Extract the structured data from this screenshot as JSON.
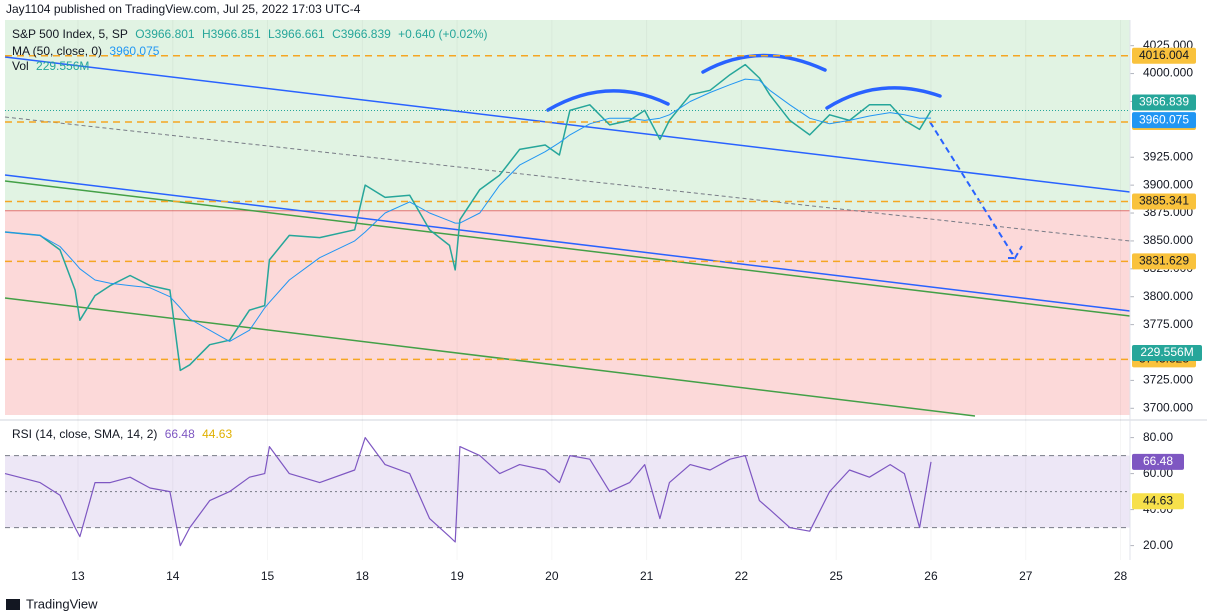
{
  "header": {
    "publisher": "Jay1104 published on TradingView.com, Jul 25, 2022 17:03 UTC-4",
    "footer": "TradingView"
  },
  "chart_data": {
    "type": "line",
    "legend_values": [
      "O3966.801",
      "H3966.851",
      "L3966.661",
      "C3966.839",
      "+0.640 (+0.02%)"
    ],
    "x": [
      -0.77,
      -0.4,
      -0.19,
      -0.03,
      0.02,
      0.18,
      0.34,
      0.55,
      0.76,
      0.97,
      1.08,
      1.18,
      1.39,
      1.6,
      1.81,
      1.97,
      2.02,
      2.23,
      2.55,
      2.92,
      3.03,
      3.24,
      3.5,
      3.71,
      3.92,
      3.98,
      4.03,
      4.24,
      4.45,
      4.66,
      4.93,
      5.08,
      5.19,
      5.4,
      5.61,
      5.82,
      5.98,
      6.14,
      6.24,
      6.46,
      6.67,
      6.88,
      7.04,
      7.19,
      7.3,
      7.51,
      7.72,
      7.93,
      8.14,
      8.35,
      8.57,
      8.72,
      8.88,
      9.0
    ],
    "xlim": [
      -0.77,
      11.1
    ],
    "xticks": [
      {
        "value": 0,
        "label": "13"
      },
      {
        "value": 1,
        "label": "14"
      },
      {
        "value": 2,
        "label": "15"
      },
      {
        "value": 3,
        "label": "18"
      },
      {
        "value": 4,
        "label": "19"
      },
      {
        "value": 5,
        "label": "20"
      },
      {
        "value": 6,
        "label": "21"
      },
      {
        "value": 7,
        "label": "22"
      },
      {
        "value": 8,
        "label": "25"
      },
      {
        "value": 9,
        "label": "26"
      },
      {
        "value": 10,
        "label": "27"
      },
      {
        "value": 11,
        "label": "28"
      }
    ],
    "series": [
      {
        "name": "S&P 500 Index, 5, SP",
        "color": "#26a69a",
        "values": [
          3858,
          3855,
          3842,
          3806,
          3779,
          3801,
          3810,
          3819,
          3810,
          3806,
          3734,
          3739,
          3757,
          3761,
          3788,
          3792,
          3833,
          3855,
          3853,
          3860,
          3900,
          3889,
          3891,
          3860,
          3846,
          3824,
          3869,
          3896,
          3909,
          3932,
          3936,
          3927,
          3967,
          3972,
          3954,
          3958,
          3967,
          3941,
          3958,
          3981,
          3985,
          3999,
          4008,
          3996,
          3981,
          3958,
          3945,
          3963,
          3958,
          3972,
          3972,
          3958,
          3950,
          3966.839
        ]
      },
      {
        "name": "MA (50, close, 0)",
        "color": "#2196f3",
        "values": [
          3858,
          3855,
          3845,
          3830,
          3825,
          3815,
          3812,
          3810,
          3808,
          3800,
          3790,
          3780,
          3770,
          3760,
          3770,
          3790,
          3795,
          3815,
          3835,
          3850,
          3858,
          3875,
          3885,
          3875,
          3868,
          3866,
          3866,
          3875,
          3900,
          3918,
          3930,
          3938,
          3945,
          3955,
          3960,
          3960,
          3958,
          3960,
          3963,
          3975,
          3983,
          3990,
          3995,
          3994,
          3985,
          3972,
          3960,
          3955,
          3958,
          3962,
          3965,
          3963,
          3960,
          3960.075
        ]
      }
    ],
    "ma_last": 3960.075,
    "last_price": 3966.839,
    "volume_name": "Vol",
    "volume_label": "229.556M",
    "zone_boundary": 3877,
    "levels": [
      4016.004,
      3956.603,
      3885.341,
      3831.629,
      3743.828
    ],
    "ylim": [
      3694,
      4048
    ],
    "yticks": [
      {
        "value": 3700,
        "label": "3700.000"
      },
      {
        "value": 3725,
        "label": "3725.000"
      },
      {
        "value": 3775,
        "label": "3775.000"
      },
      {
        "value": 3800,
        "label": "3800.000"
      },
      {
        "value": 3825,
        "label": "3825.000"
      },
      {
        "value": 3850,
        "label": "3850.000"
      },
      {
        "value": 3875,
        "label": "3875.000"
      },
      {
        "value": 3900,
        "label": "3900.000"
      },
      {
        "value": 3925,
        "label": "3925.000"
      },
      {
        "value": 3975,
        "label": "3975.000"
      },
      {
        "value": 4000,
        "label": "4000.000"
      },
      {
        "value": 4025,
        "label": "4025.000"
      }
    ],
    "rsi": {
      "title": "RSI (14, close, SMA, 14, 2)",
      "color": "#7e57c2",
      "values": [
        60,
        55,
        48,
        30,
        25,
        55,
        55,
        58,
        52,
        50,
        20,
        30,
        45,
        50,
        58,
        60,
        75,
        60,
        55,
        62,
        80,
        65,
        60,
        35,
        25,
        22,
        75,
        70,
        60,
        65,
        62,
        55,
        70,
        68,
        50,
        55,
        65,
        35,
        55,
        65,
        62,
        68,
        70,
        45,
        40,
        30,
        28,
        50,
        62,
        58,
        65,
        60,
        30,
        66.48
      ],
      "last": 66.48,
      "sma_last": 44.63,
      "bands": [
        30,
        50,
        70
      ],
      "ylim": [
        12,
        87
      ],
      "yticks": [
        {
          "value": 20,
          "label": "20.00"
        },
        {
          "value": 40,
          "label": "40.00"
        },
        {
          "value": 60,
          "label": "60.00"
        },
        {
          "value": 80,
          "label": "80.00"
        }
      ]
    }
  }
}
